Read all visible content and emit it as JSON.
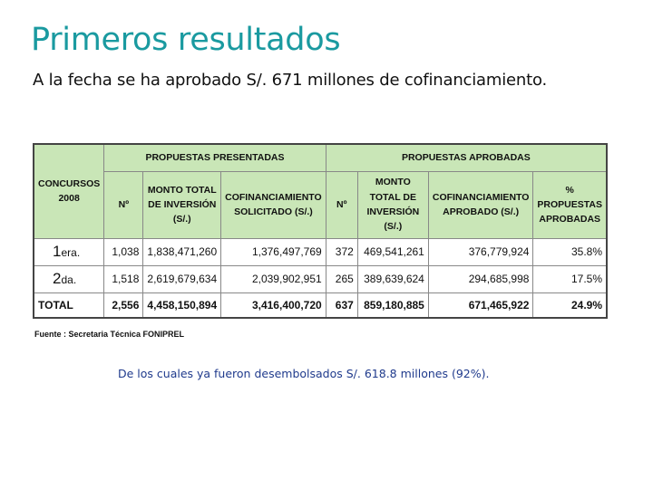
{
  "title": "Primeros resultados",
  "subtitle": "A la fecha se ha aprobado S/. 671 millones de cofinanciamiento.",
  "table": {
    "col_concursos": "CONCURSOS 2008",
    "group_presentadas": "PROPUESTAS PRESENTADAS",
    "group_aprobadas": "PROPUESTAS APROBADAS",
    "headers": {
      "n1": "Nº",
      "monto1": "MONTO TOTAL DE INVERSIÓN (S/.)",
      "cof1": "COFINANCIAMIENTO SOLICITADO (S/.)",
      "n2": "Nº",
      "monto2": "MONTO TOTAL DE INVERSIÓN (S/.)",
      "cof2": "COFINANCIAMIENTO APROBADO (S/.)",
      "pct": "% PROPUESTAS APROBADAS"
    },
    "rows": [
      {
        "label": "1",
        "suffix": "era.",
        "n1": "1,038",
        "monto1": "1,838,471,260",
        "cof1": "1,376,497,769",
        "n2": "372",
        "monto2": "469,541,261",
        "cof2": "376,779,924",
        "pct": "35.8%"
      },
      {
        "label": "2",
        "suffix": "da.",
        "n1": "1,518",
        "monto1": "2,619,679,634",
        "cof1": "2,039,902,951",
        "n2": "265",
        "monto2": "389,639,624",
        "cof2": "294,685,998",
        "pct": "17.5%"
      }
    ],
    "total": {
      "label": "TOTAL",
      "n1": "2,556",
      "monto1": "4,458,150,894",
      "cof1": "3,416,400,720",
      "n2": "637",
      "monto2": "859,180,885",
      "cof2": "671,465,922",
      "pct": "24.9%"
    }
  },
  "source": "Fuente : Secretaria Técnica FONIPREL",
  "footnote": "De los cuales ya fueron desembolsados S/. 618.8 millones (92%).",
  "colors": {
    "title": "#1a9aa0",
    "header_bg": "#c9e6b7",
    "footnote": "#1f3a8c"
  }
}
